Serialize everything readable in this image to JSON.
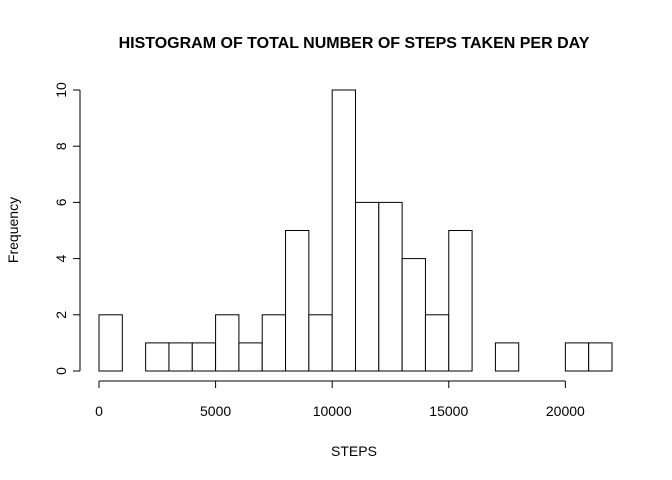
{
  "chart_data": {
    "type": "bar",
    "subtype": "histogram",
    "title": "HISTOGRAM OF TOTAL NUMBER OF STEPS TAKEN PER DAY",
    "xlabel": "STEPS",
    "ylabel": "Frequency",
    "bin_width": 1000,
    "bins": [
      {
        "start": 0,
        "end": 1000,
        "count": 2
      },
      {
        "start": 1000,
        "end": 2000,
        "count": 0
      },
      {
        "start": 2000,
        "end": 3000,
        "count": 1
      },
      {
        "start": 3000,
        "end": 4000,
        "count": 1
      },
      {
        "start": 4000,
        "end": 5000,
        "count": 1
      },
      {
        "start": 5000,
        "end": 6000,
        "count": 2
      },
      {
        "start": 6000,
        "end": 7000,
        "count": 1
      },
      {
        "start": 7000,
        "end": 8000,
        "count": 2
      },
      {
        "start": 8000,
        "end": 9000,
        "count": 5
      },
      {
        "start": 9000,
        "end": 10000,
        "count": 2
      },
      {
        "start": 10000,
        "end": 11000,
        "count": 10
      },
      {
        "start": 11000,
        "end": 12000,
        "count": 6
      },
      {
        "start": 12000,
        "end": 13000,
        "count": 6
      },
      {
        "start": 13000,
        "end": 14000,
        "count": 4
      },
      {
        "start": 14000,
        "end": 15000,
        "count": 2
      },
      {
        "start": 15000,
        "end": 16000,
        "count": 5
      },
      {
        "start": 16000,
        "end": 17000,
        "count": 0
      },
      {
        "start": 17000,
        "end": 18000,
        "count": 1
      },
      {
        "start": 18000,
        "end": 19000,
        "count": 0
      },
      {
        "start": 19000,
        "end": 20000,
        "count": 0
      },
      {
        "start": 20000,
        "end": 21000,
        "count": 1
      },
      {
        "start": 21000,
        "end": 22000,
        "count": 1
      }
    ],
    "xticks": [
      0,
      5000,
      10000,
      15000,
      20000
    ],
    "xticks_labels": [
      "0",
      "5000",
      "10000",
      "15000",
      "20000"
    ],
    "yticks": [
      0,
      2,
      4,
      6,
      8,
      10
    ],
    "yticks_labels": [
      "0",
      "2",
      "4",
      "6",
      "8",
      "10"
    ],
    "xlim": [
      0,
      22000
    ],
    "ylim": [
      0,
      10
    ],
    "grid": false,
    "legend": "none",
    "colors": {
      "bar_fill": "#ffffff",
      "bar_stroke": "#000000"
    }
  }
}
